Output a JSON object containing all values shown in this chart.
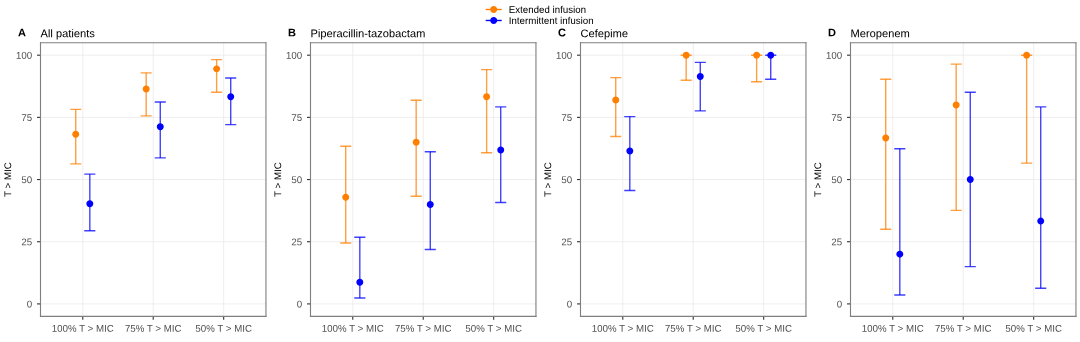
{
  "chart_data": [
    {
      "type": "scatter",
      "title": "All patients",
      "annotations": [
        "A"
      ],
      "ylabel": "T > MIC",
      "categories": [
        "100% T > MIC",
        "75% T > MIC",
        "50% T > MIC"
      ],
      "ylim": [
        -5,
        105
      ],
      "yticks": [
        0,
        25,
        50,
        75,
        100
      ],
      "grid": true,
      "legend": "top",
      "marker": "circle",
      "series": [
        {
          "name": "Extended infusion",
          "color": "#ff7f00",
          "values": [
            68.2,
            86.4,
            94.5
          ],
          "errors": [
            [
              56.3,
              78.2
            ],
            [
              75.6,
              92.9
            ],
            [
              85.1,
              98.2
            ]
          ]
        },
        {
          "name": "Intermittent infusion",
          "color": "#0000ff",
          "values": [
            40.3,
            71.2,
            83.3
          ],
          "errors": [
            [
              29.4,
              52.2
            ],
            [
              58.7,
              81.2
            ],
            [
              72.1,
              90.8
            ]
          ]
        }
      ]
    },
    {
      "type": "scatter",
      "title": "Piperacillin-tazobactam",
      "annotations": [
        "B"
      ],
      "ylabel": "T > MIC",
      "categories": [
        "100% T > MIC",
        "75% T > MIC",
        "50% T > MIC"
      ],
      "ylim": [
        -5,
        105
      ],
      "yticks": [
        0,
        25,
        50,
        75,
        100
      ],
      "grid": true,
      "marker": "circle",
      "series": [
        {
          "color": "#ff7f00",
          "values": [
            42.9,
            65.0,
            83.3
          ],
          "errors": [
            [
              24.5,
              63.4
            ],
            [
              43.3,
              81.9
            ],
            [
              60.8,
              94.2
            ]
          ]
        },
        {
          "color": "#0000ff",
          "values": [
            8.7,
            40.0,
            61.9
          ],
          "errors": [
            [
              2.4,
              26.8
            ],
            [
              21.9,
              61.2
            ],
            [
              40.8,
              79.2
            ]
          ]
        }
      ]
    },
    {
      "type": "scatter",
      "title": "Cefepime",
      "annotations": [
        "C"
      ],
      "ylabel": "T > MIC",
      "categories": [
        "100% T > MIC",
        "75% T > MIC",
        "50% T > MIC"
      ],
      "ylim": [
        -5,
        105
      ],
      "yticks": [
        0,
        25,
        50,
        75,
        100
      ],
      "grid": true,
      "marker": "circle",
      "series": [
        {
          "color": "#ff7f00",
          "values": [
            82.0,
            100,
            100
          ],
          "errors": [
            [
              67.3,
              91.0
            ],
            [
              89.9,
              100
            ],
            [
              89.3,
              100
            ]
          ]
        },
        {
          "color": "#0000ff",
          "values": [
            61.5,
            91.4,
            100
          ],
          "errors": [
            [
              45.6,
              75.3
            ],
            [
              77.6,
              97.1
            ],
            [
              90.3,
              100
            ]
          ]
        }
      ]
    },
    {
      "type": "scatter",
      "title": "Meropenem",
      "annotations": [
        "D"
      ],
      "ylabel": "T > MIC",
      "categories": [
        "100% T > MIC",
        "75% T > MIC",
        "50% T > MIC"
      ],
      "ylim": [
        -5,
        105
      ],
      "yticks": [
        0,
        25,
        50,
        75,
        100
      ],
      "grid": true,
      "marker": "circle",
      "series": [
        {
          "color": "#ff7f00",
          "values": [
            66.7,
            80.0,
            100
          ],
          "errors": [
            [
              30.0,
              90.3
            ],
            [
              37.6,
              96.4
            ],
            [
              56.6,
              100
            ]
          ]
        },
        {
          "color": "#0000ff",
          "values": [
            20.0,
            50.0,
            33.3
          ],
          "errors": [
            [
              3.6,
              62.4
            ],
            [
              15.0,
              85.1
            ],
            [
              6.3,
              79.2
            ]
          ]
        }
      ]
    }
  ]
}
